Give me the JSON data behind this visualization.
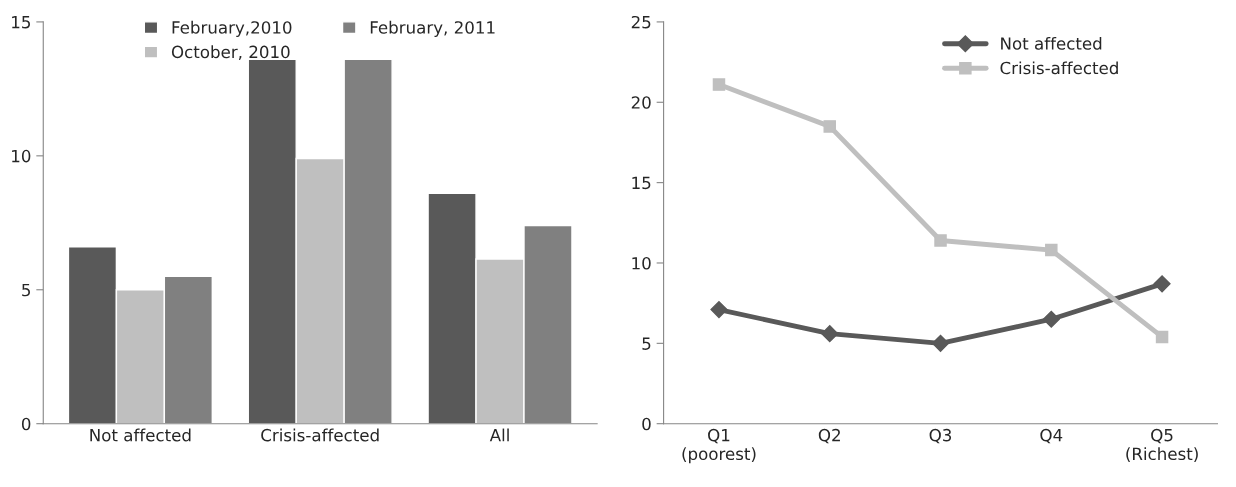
{
  "chart_data": [
    {
      "type": "bar",
      "categories": [
        "Not affected",
        "Crisis-affected",
        "All"
      ],
      "series": [
        {
          "name": "February,2010",
          "color": "#595959",
          "values": [
            6.6,
            13.6,
            8.6
          ]
        },
        {
          "name": "October, 2010",
          "color": "#bfbfbf",
          "values": [
            5.0,
            9.9,
            6.15
          ]
        },
        {
          "name": "February, 2011",
          "color": "#808080",
          "values": [
            5.5,
            13.6,
            7.4
          ]
        }
      ],
      "ylim": [
        0,
        15
      ],
      "yticks": [
        0,
        5,
        10,
        15
      ],
      "grid": false,
      "legend": "top"
    },
    {
      "type": "line",
      "categories": [
        "Q1\n(poorest)",
        "Q2",
        "Q3",
        "Q4",
        "Q5\n(Richest)"
      ],
      "series": [
        {
          "name": "Not affected",
          "color": "#595959",
          "marker": "diamond",
          "values": [
            7.1,
            5.6,
            5.0,
            6.5,
            8.7
          ]
        },
        {
          "name": "Crisis-affected",
          "color": "#bfbfbf",
          "marker": "square",
          "values": [
            21.1,
            18.5,
            11.4,
            10.8,
            5.4
          ]
        }
      ],
      "ylim": [
        0,
        25
      ],
      "yticks": [
        0,
        5,
        10,
        15,
        20,
        25
      ],
      "grid": false,
      "legend": "top right"
    }
  ]
}
